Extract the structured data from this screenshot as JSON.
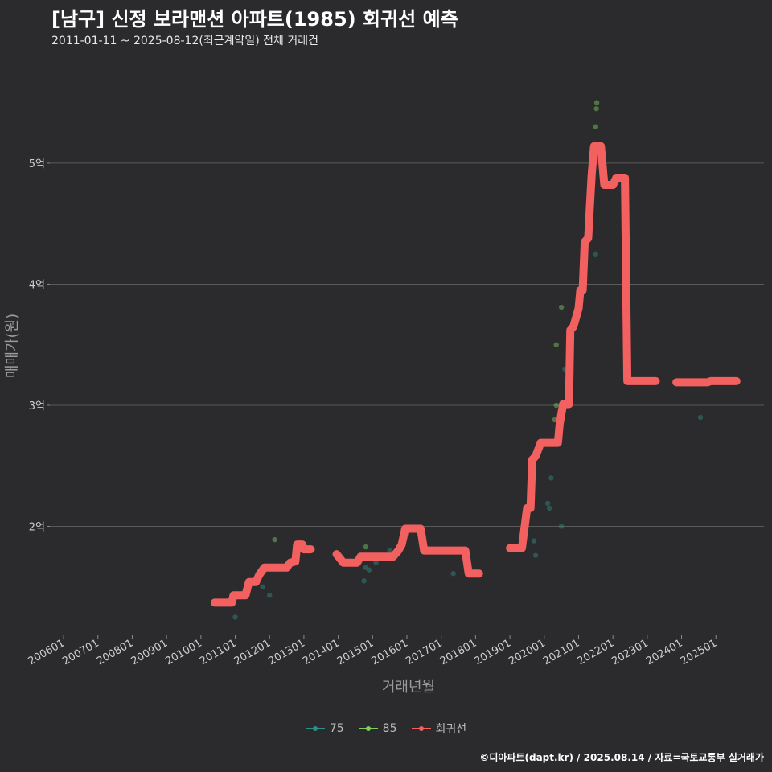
{
  "header": {
    "title": "[남구] 신정 보라맨션 아파트(1985) 회귀선 예측",
    "subtitle": "2011-01-11 ~ 2025-08-12(최근계약일) 전체 거래건"
  },
  "footer": {
    "caption": "©디아파트(dapt.kr) / 2025.08.14 / 자료=국토교통부 실거래가"
  },
  "colors": {
    "background": "#2b2b2d",
    "grid": "#5a5a5a",
    "series_75": "#2f8f86",
    "series_85": "#7fcf5f",
    "regression": "#f26060"
  },
  "chart_data": {
    "type": "scatter",
    "title": "[남구] 신정 보라맨션 아파트(1985) 회귀선 예측",
    "xlabel": "거래년월",
    "ylabel": "매매가(원)",
    "x_ticks": [
      "200601",
      "200701",
      "200801",
      "200901",
      "201001",
      "201101",
      "201201",
      "201301",
      "201401",
      "201501",
      "201601",
      "201701",
      "201801",
      "201901",
      "202001",
      "202101",
      "202201",
      "202301",
      "202401",
      "202501"
    ],
    "x_range": [
      2005.6,
      2026.4
    ],
    "y_ticks": [
      {
        "value": 2.0,
        "label": "2억"
      },
      {
        "value": 3.0,
        "label": "3억"
      },
      {
        "value": 4.0,
        "label": "4억"
      },
      {
        "value": 5.0,
        "label": "5억"
      }
    ],
    "ylim": [
      1.1,
      5.75
    ],
    "y_unit": "억 원",
    "legend": [
      {
        "key": "75",
        "label": "75",
        "color": "#2f8f86"
      },
      {
        "key": "85",
        "label": "85",
        "color": "#7fcf5f"
      },
      {
        "key": "reg",
        "label": "회귀선",
        "color": "#f26060"
      }
    ],
    "series": [
      {
        "name": "75",
        "points": [
          {
            "x": 2011.0,
            "y": 1.25
          },
          {
            "x": 2011.8,
            "y": 1.5
          },
          {
            "x": 2012.0,
            "y": 1.43
          },
          {
            "x": 2014.75,
            "y": 1.55
          },
          {
            "x": 2014.8,
            "y": 1.66
          },
          {
            "x": 2014.9,
            "y": 1.64
          },
          {
            "x": 2015.1,
            "y": 1.7
          },
          {
            "x": 2015.5,
            "y": 1.8
          },
          {
            "x": 2017.35,
            "y": 1.61
          },
          {
            "x": 2019.7,
            "y": 1.88
          },
          {
            "x": 2019.75,
            "y": 1.76
          },
          {
            "x": 2020.1,
            "y": 2.19
          },
          {
            "x": 2020.15,
            "y": 2.15
          },
          {
            "x": 2020.2,
            "y": 2.4
          },
          {
            "x": 2020.5,
            "y": 2.0
          },
          {
            "x": 2020.6,
            "y": 3.3
          },
          {
            "x": 2021.5,
            "y": 4.25
          },
          {
            "x": 2024.55,
            "y": 2.9
          }
        ]
      },
      {
        "name": "85",
        "points": [
          {
            "x": 2012.15,
            "y": 1.89
          },
          {
            "x": 2014.8,
            "y": 1.83
          },
          {
            "x": 2020.3,
            "y": 2.88
          },
          {
            "x": 2020.35,
            "y": 3.0
          },
          {
            "x": 2020.35,
            "y": 3.5
          },
          {
            "x": 2020.5,
            "y": 3.81
          },
          {
            "x": 2021.0,
            "y": 3.9
          },
          {
            "x": 2021.25,
            "y": 4.5
          },
          {
            "x": 2021.5,
            "y": 5.3
          },
          {
            "x": 2021.52,
            "y": 5.45
          },
          {
            "x": 2021.53,
            "y": 5.5
          }
        ]
      }
    ],
    "regression": [
      [
        {
          "x": 2010.4,
          "y": 1.37
        },
        {
          "x": 2010.9,
          "y": 1.37
        },
        {
          "x": 2010.95,
          "y": 1.43
        },
        {
          "x": 2011.3,
          "y": 1.43
        },
        {
          "x": 2011.4,
          "y": 1.54
        },
        {
          "x": 2011.6,
          "y": 1.54
        },
        {
          "x": 2011.7,
          "y": 1.6
        },
        {
          "x": 2011.85,
          "y": 1.66
        },
        {
          "x": 2012.5,
          "y": 1.66
        },
        {
          "x": 2012.6,
          "y": 1.7
        },
        {
          "x": 2012.75,
          "y": 1.71
        },
        {
          "x": 2012.8,
          "y": 1.85
        },
        {
          "x": 2012.95,
          "y": 1.85
        },
        {
          "x": 2013.0,
          "y": 1.81
        },
        {
          "x": 2013.2,
          "y": 1.81
        }
      ],
      [
        {
          "x": 2013.95,
          "y": 1.77
        },
        {
          "x": 2014.15,
          "y": 1.7
        },
        {
          "x": 2014.55,
          "y": 1.7
        },
        {
          "x": 2014.65,
          "y": 1.75
        },
        {
          "x": 2015.6,
          "y": 1.75
        },
        {
          "x": 2015.75,
          "y": 1.8
        },
        {
          "x": 2015.85,
          "y": 1.85
        },
        {
          "x": 2015.95,
          "y": 1.98
        },
        {
          "x": 2016.4,
          "y": 1.98
        },
        {
          "x": 2016.5,
          "y": 1.8
        },
        {
          "x": 2017.7,
          "y": 1.8
        },
        {
          "x": 2017.8,
          "y": 1.61
        },
        {
          "x": 2018.1,
          "y": 1.61
        }
      ],
      [
        {
          "x": 2019.0,
          "y": 1.82
        },
        {
          "x": 2019.35,
          "y": 1.82
        },
        {
          "x": 2019.5,
          "y": 2.15
        },
        {
          "x": 2019.6,
          "y": 2.15
        },
        {
          "x": 2019.65,
          "y": 2.55
        },
        {
          "x": 2019.75,
          "y": 2.58
        },
        {
          "x": 2019.9,
          "y": 2.69
        },
        {
          "x": 2020.4,
          "y": 2.69
        },
        {
          "x": 2020.45,
          "y": 2.85
        },
        {
          "x": 2020.55,
          "y": 3.01
        },
        {
          "x": 2020.72,
          "y": 3.01
        },
        {
          "x": 2020.76,
          "y": 3.62
        },
        {
          "x": 2020.85,
          "y": 3.65
        },
        {
          "x": 2021.0,
          "y": 3.8
        },
        {
          "x": 2021.05,
          "y": 3.95
        },
        {
          "x": 2021.12,
          "y": 3.95
        },
        {
          "x": 2021.18,
          "y": 4.35
        },
        {
          "x": 2021.28,
          "y": 4.38
        },
        {
          "x": 2021.38,
          "y": 4.9
        },
        {
          "x": 2021.45,
          "y": 5.14
        },
        {
          "x": 2021.65,
          "y": 5.14
        },
        {
          "x": 2021.75,
          "y": 4.82
        },
        {
          "x": 2022.0,
          "y": 4.82
        },
        {
          "x": 2022.1,
          "y": 4.88
        },
        {
          "x": 2022.35,
          "y": 4.88
        },
        {
          "x": 2022.42,
          "y": 3.2
        },
        {
          "x": 2023.25,
          "y": 3.2
        }
      ],
      [
        {
          "x": 2023.85,
          "y": 3.19
        },
        {
          "x": 2024.75,
          "y": 3.19
        },
        {
          "x": 2024.85,
          "y": 3.2
        },
        {
          "x": 2025.6,
          "y": 3.2
        }
      ]
    ]
  }
}
